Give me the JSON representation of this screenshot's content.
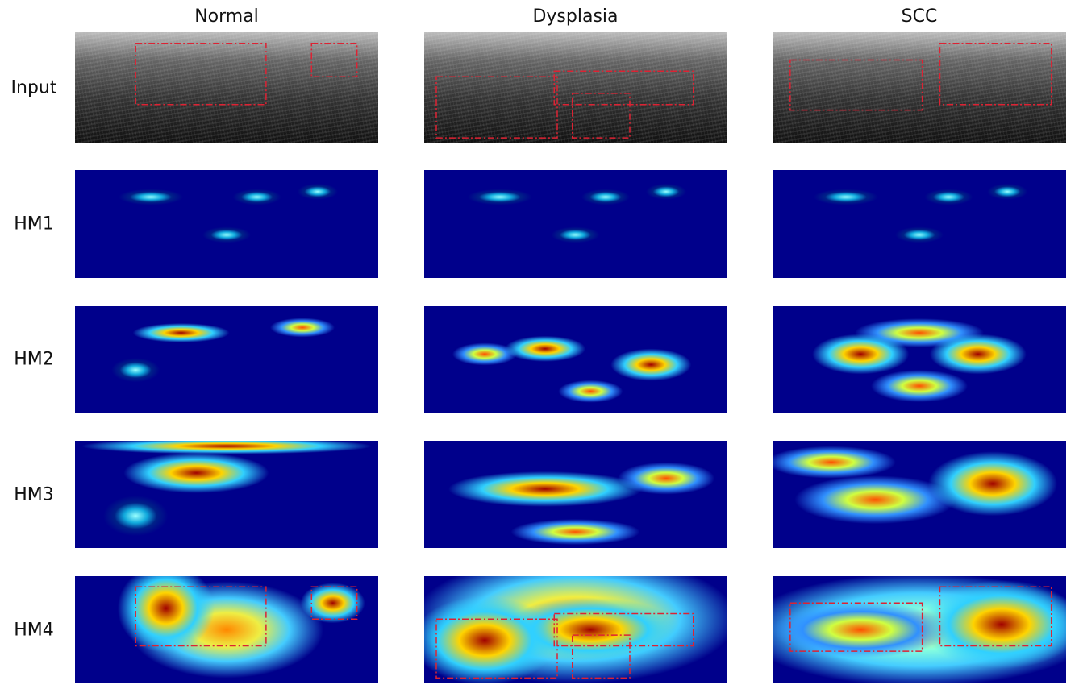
{
  "columns": [
    "Normal",
    "Dysplasia",
    "SCC"
  ],
  "rows": [
    "Input",
    "HM1",
    "HM2",
    "HM3",
    "HM4"
  ]
}
